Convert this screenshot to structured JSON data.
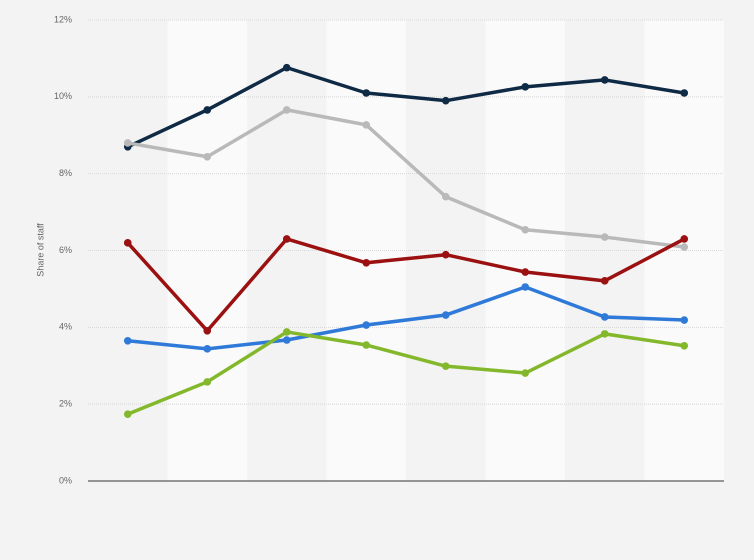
{
  "chart_data": {
    "type": "line",
    "y_label": "Share of staff",
    "categories": [
      null,
      null,
      null,
      null,
      null,
      null,
      null,
      null
    ],
    "series": [
      {
        "color": "#0f2a45",
        "values": [
          8.7,
          9.66,
          10.76,
          10.1,
          9.9,
          10.26,
          10.44,
          10.1
        ]
      },
      {
        "color": "#b9b9b9",
        "values": [
          8.8,
          8.44,
          9.66,
          9.27,
          7.4,
          6.54,
          6.35,
          6.09
        ]
      },
      {
        "color": "#9b1010",
        "values": [
          6.2,
          3.91,
          6.3,
          5.68,
          5.89,
          5.44,
          5.21,
          6.3
        ]
      },
      {
        "color": "#2f7ad8",
        "values": [
          3.65,
          3.44,
          3.67,
          4.06,
          4.32,
          5.05,
          4.27,
          4.19
        ]
      },
      {
        "color": "#84b82c",
        "values": [
          1.74,
          2.58,
          3.88,
          3.54,
          2.99,
          2.81,
          3.83,
          3.52
        ]
      }
    ],
    "ylim": [
      0,
      12
    ],
    "yticks": [
      {
        "value": 0,
        "label": "0%"
      },
      {
        "value": 2,
        "label": "2%"
      },
      {
        "value": 4,
        "label": "4%"
      },
      {
        "value": 6,
        "label": "6%"
      },
      {
        "value": 8,
        "label": "8%"
      },
      {
        "value": 10,
        "label": "10%"
      },
      {
        "value": 12,
        "label": "12%"
      }
    ],
    "grid": true
  }
}
